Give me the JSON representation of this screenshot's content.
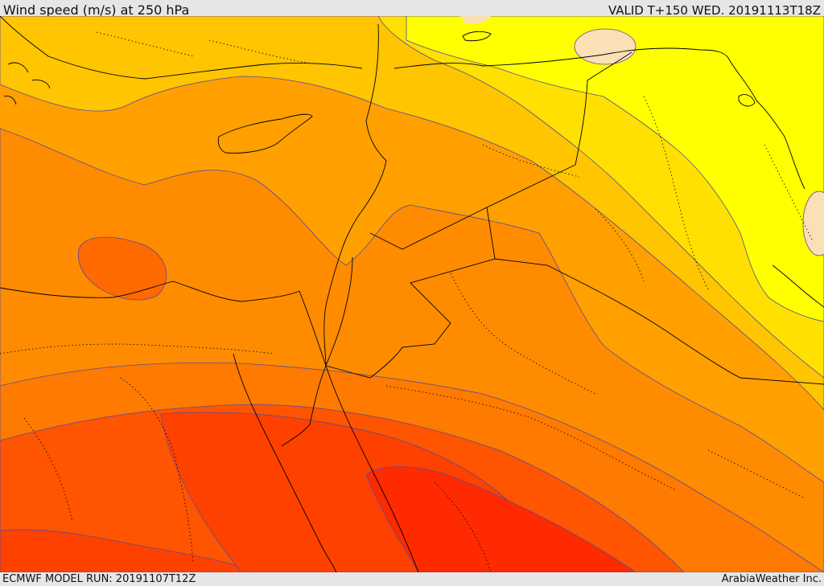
{
  "header": {
    "title": "Wind speed (m/s) at 250 hPa",
    "valid": "VALID T+150 WED. 20191113T18Z"
  },
  "footer": {
    "model_run": "ECMWF MODEL RUN: 20191107T12Z",
    "credit": "ArabiaWeather Inc."
  },
  "map": {
    "variable": "wind speed",
    "level_hpa": 250,
    "region": "Eastern Mediterranean, Levant, Egypt, Iraq",
    "colors": {
      "very_light": "#fbdfb5",
      "yellow": "#ffff00",
      "gold": "#ffe000",
      "amber": "#ffc500",
      "orange_light": "#ffa000",
      "orange": "#ff8c00",
      "orange_dark": "#ff7a00",
      "red_orange": "#ff6a00",
      "red_orange_dark": "#ff5400",
      "red": "#ff4100",
      "red_dark": "#ff2a00",
      "contour": "#5a4a9a",
      "border": "#000000"
    }
  }
}
